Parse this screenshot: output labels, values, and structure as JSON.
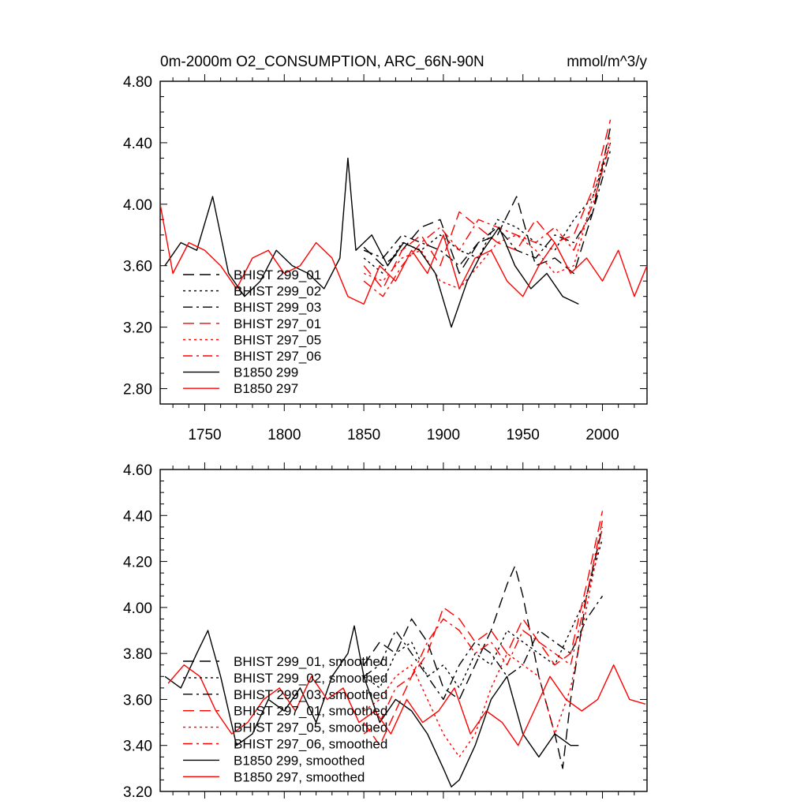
{
  "chart_data": [
    {
      "type": "line",
      "title": "0m-2000m O2_CONSUMPTION, ARC_66N-90N",
      "units": "mmol/m^3/y",
      "xlim": [
        1722,
        2028
      ],
      "ylim": [
        2.7,
        4.8
      ],
      "x_ticks": [
        1750,
        1800,
        1850,
        1900,
        1950,
        2000
      ],
      "y_ticks": [
        2.8,
        3.2,
        3.6,
        4.0,
        4.4,
        4.8
      ],
      "y_tick_labels": [
        "2.80",
        "3.20",
        "3.60",
        "4.00",
        "4.40",
        "4.80"
      ],
      "x_tick_labels_shown": true,
      "grid": false,
      "legend_position": "bottom-left",
      "series": [
        {
          "name": "BHIST 299_01",
          "color": "#000000",
          "dash": "dashed",
          "x": [
            1850,
            1862,
            1874,
            1886,
            1898,
            1910,
            1922,
            1934,
            1946,
            1958,
            1970,
            1982,
            1994,
            2005
          ],
          "y": [
            3.72,
            3.6,
            3.7,
            3.85,
            3.9,
            3.55,
            3.75,
            3.8,
            4.05,
            3.6,
            3.65,
            3.55,
            3.95,
            4.5
          ]
        },
        {
          "name": "BHIST 299_02",
          "color": "#000000",
          "dash": "dotted",
          "x": [
            1850,
            1862,
            1874,
            1886,
            1898,
            1910,
            1922,
            1934,
            1946,
            1958,
            1970,
            1982,
            1994,
            2005
          ],
          "y": [
            3.65,
            3.55,
            3.75,
            3.7,
            3.8,
            3.7,
            3.65,
            3.9,
            3.85,
            3.75,
            3.7,
            3.9,
            4.05,
            4.4
          ]
        },
        {
          "name": "BHIST 299_03",
          "color": "#000000",
          "dash": "dashdot",
          "x": [
            1850,
            1862,
            1874,
            1886,
            1898,
            1910,
            1922,
            1934,
            1946,
            1958,
            1970,
            1982,
            1994,
            2005
          ],
          "y": [
            3.7,
            3.65,
            3.8,
            3.75,
            3.7,
            3.6,
            3.75,
            3.85,
            3.7,
            3.65,
            3.8,
            3.75,
            3.95,
            4.35
          ]
        },
        {
          "name": "BHIST 297_01",
          "color": "#ff0000",
          "dash": "dashed",
          "x": [
            1850,
            1862,
            1874,
            1886,
            1898,
            1910,
            1922,
            1934,
            1946,
            1958,
            1970,
            1982,
            1994,
            2005
          ],
          "y": [
            3.6,
            3.45,
            3.7,
            3.8,
            3.6,
            3.95,
            3.85,
            3.75,
            3.7,
            3.9,
            3.75,
            3.8,
            4.1,
            4.55
          ]
        },
        {
          "name": "BHIST 297_05",
          "color": "#ff0000",
          "dash": "dotted",
          "x": [
            1850,
            1862,
            1874,
            1886,
            1898,
            1910,
            1922,
            1934,
            1946,
            1958,
            1970,
            1982,
            1994,
            2005
          ],
          "y": [
            3.55,
            3.5,
            3.65,
            3.7,
            3.5,
            3.45,
            3.6,
            3.75,
            3.8,
            3.7,
            3.55,
            3.6,
            4.05,
            4.45
          ]
        },
        {
          "name": "BHIST 297_06",
          "color": "#ff0000",
          "dash": "dashdot",
          "x": [
            1850,
            1862,
            1874,
            1886,
            1898,
            1910,
            1922,
            1934,
            1946,
            1958,
            1970,
            1982,
            1994,
            2005
          ],
          "y": [
            3.5,
            3.4,
            3.6,
            3.75,
            3.85,
            3.7,
            3.9,
            3.85,
            3.8,
            3.75,
            3.85,
            3.7,
            4.0,
            4.4
          ]
        },
        {
          "name": "B1850 299",
          "color": "#000000",
          "dash": "solid",
          "x": [
            1725,
            1735,
            1745,
            1755,
            1765,
            1775,
            1785,
            1795,
            1805,
            1815,
            1825,
            1835,
            1840,
            1845,
            1855,
            1865,
            1875,
            1885,
            1895,
            1905,
            1915,
            1925,
            1935,
            1945,
            1955,
            1965,
            1975,
            1985
          ],
          "y": [
            3.6,
            3.75,
            3.7,
            4.05,
            3.55,
            3.4,
            3.5,
            3.7,
            3.6,
            3.55,
            3.45,
            3.65,
            4.3,
            3.7,
            3.8,
            3.6,
            3.75,
            3.7,
            3.55,
            3.2,
            3.5,
            3.7,
            3.85,
            3.6,
            3.45,
            3.55,
            3.4,
            3.35
          ]
        },
        {
          "name": "B1850 297",
          "color": "#ff0000",
          "dash": "solid",
          "x": [
            1722,
            1730,
            1740,
            1750,
            1760,
            1770,
            1780,
            1790,
            1800,
            1810,
            1820,
            1830,
            1840,
            1850,
            1860,
            1870,
            1880,
            1890,
            1900,
            1910,
            1920,
            1930,
            1940,
            1950,
            1960,
            1970,
            1980,
            1990,
            2000,
            2010,
            2020,
            2028
          ],
          "y": [
            4.0,
            3.55,
            3.75,
            3.7,
            3.6,
            3.45,
            3.65,
            3.7,
            3.55,
            3.6,
            3.75,
            3.65,
            3.4,
            3.35,
            3.6,
            3.5,
            3.7,
            3.55,
            3.8,
            3.45,
            3.65,
            3.7,
            3.5,
            3.4,
            3.6,
            3.75,
            3.55,
            3.65,
            3.5,
            3.7,
            3.4,
            3.6
          ]
        }
      ]
    },
    {
      "type": "line",
      "title": "",
      "xlim": [
        1722,
        2028
      ],
      "ylim": [
        3.2,
        4.6
      ],
      "x_ticks": [
        1750,
        1800,
        1850,
        1900,
        1950,
        2000
      ],
      "y_ticks": [
        3.2,
        3.4,
        3.6,
        3.8,
        4.0,
        4.2,
        4.4,
        4.6
      ],
      "y_tick_labels": [
        "3.20",
        "3.40",
        "3.60",
        "3.80",
        "4.00",
        "4.20",
        "4.40",
        "4.60"
      ],
      "x_tick_labels_shown": false,
      "grid": false,
      "legend_position": "bottom-left",
      "series": [
        {
          "name": "BHIST 299_01, smoothed",
          "color": "#000000",
          "dash": "dashed",
          "x": [
            1850,
            1860,
            1870,
            1880,
            1890,
            1900,
            1910,
            1920,
            1930,
            1940,
            1945,
            1950,
            1960,
            1970,
            1975,
            1980,
            1990,
            2000
          ],
          "y": [
            3.75,
            3.85,
            3.8,
            3.95,
            3.85,
            3.65,
            3.6,
            3.75,
            3.9,
            4.1,
            4.18,
            4.05,
            3.7,
            3.45,
            3.3,
            3.6,
            4.05,
            4.35
          ]
        },
        {
          "name": "BHIST 299_02, smoothed",
          "color": "#000000",
          "dash": "dotted",
          "x": [
            1850,
            1860,
            1870,
            1880,
            1890,
            1900,
            1910,
            1920,
            1930,
            1940,
            1950,
            1960,
            1970,
            1980,
            1990,
            2000
          ],
          "y": [
            3.7,
            3.65,
            3.8,
            3.85,
            3.7,
            3.75,
            3.65,
            3.8,
            3.75,
            3.9,
            3.85,
            3.8,
            3.75,
            3.9,
            4.05,
            4.3
          ]
        },
        {
          "name": "BHIST 299_03, smoothed",
          "color": "#000000",
          "dash": "dashdot",
          "x": [
            1850,
            1860,
            1870,
            1880,
            1890,
            1900,
            1910,
            1920,
            1930,
            1940,
            1950,
            1960,
            1970,
            1980,
            1990,
            2000
          ],
          "y": [
            3.7,
            3.75,
            3.9,
            3.8,
            3.7,
            3.6,
            3.75,
            3.85,
            3.8,
            3.7,
            3.75,
            3.9,
            3.85,
            3.8,
            3.95,
            4.05
          ]
        },
        {
          "name": "BHIST 297_01, smoothed",
          "color": "#ff0000",
          "dash": "dashed",
          "x": [
            1850,
            1860,
            1870,
            1880,
            1890,
            1900,
            1910,
            1920,
            1930,
            1940,
            1950,
            1960,
            1970,
            1980,
            1990,
            2000
          ],
          "y": [
            3.5,
            3.4,
            3.55,
            3.7,
            3.8,
            4.0,
            3.95,
            3.85,
            3.9,
            3.8,
            3.95,
            3.85,
            3.75,
            3.8,
            4.1,
            4.42
          ]
        },
        {
          "name": "BHIST 297_05, smoothed",
          "color": "#ff0000",
          "dash": "dotted",
          "x": [
            1850,
            1860,
            1870,
            1880,
            1890,
            1900,
            1910,
            1920,
            1930,
            1940,
            1950,
            1960,
            1970,
            1980,
            1990,
            2000
          ],
          "y": [
            3.55,
            3.6,
            3.7,
            3.75,
            3.6,
            3.45,
            3.35,
            3.45,
            3.65,
            3.8,
            3.75,
            3.7,
            3.45,
            3.65,
            4.0,
            4.35
          ]
        },
        {
          "name": "BHIST 297_06, smoothed",
          "color": "#ff0000",
          "dash": "dashdot",
          "x": [
            1850,
            1860,
            1870,
            1880,
            1890,
            1900,
            1910,
            1920,
            1930,
            1940,
            1950,
            1960,
            1970,
            1980,
            1990,
            2000
          ],
          "y": [
            3.45,
            3.5,
            3.65,
            3.7,
            3.85,
            3.95,
            3.9,
            3.8,
            3.85,
            3.75,
            3.9,
            3.85,
            3.8,
            3.75,
            4.05,
            4.38
          ]
        },
        {
          "name": "B1850 299, smoothed",
          "color": "#000000",
          "dash": "solid",
          "x": [
            1725,
            1735,
            1745,
            1752,
            1760,
            1770,
            1780,
            1790,
            1800,
            1810,
            1820,
            1830,
            1840,
            1844,
            1850,
            1860,
            1870,
            1880,
            1890,
            1900,
            1905,
            1910,
            1920,
            1930,
            1940,
            1950,
            1960,
            1970,
            1980,
            1985
          ],
          "y": [
            3.7,
            3.65,
            3.8,
            3.9,
            3.7,
            3.4,
            3.45,
            3.6,
            3.55,
            3.65,
            3.5,
            3.7,
            3.8,
            3.92,
            3.7,
            3.5,
            3.6,
            3.55,
            3.45,
            3.3,
            3.22,
            3.25,
            3.4,
            3.6,
            3.7,
            3.45,
            3.35,
            3.45,
            3.4,
            3.4
          ]
        },
        {
          "name": "B1850 297, smoothed",
          "color": "#ff0000",
          "dash": "solid",
          "x": [
            1727,
            1737,
            1747,
            1757,
            1767,
            1777,
            1787,
            1797,
            1807,
            1817,
            1827,
            1837,
            1847,
            1857,
            1867,
            1877,
            1887,
            1897,
            1907,
            1917,
            1927,
            1937,
            1947,
            1957,
            1967,
            1977,
            1987,
            1997,
            2007,
            2017,
            2027
          ],
          "y": [
            3.67,
            3.75,
            3.7,
            3.55,
            3.45,
            3.5,
            3.6,
            3.65,
            3.55,
            3.7,
            3.6,
            3.65,
            3.5,
            3.55,
            3.45,
            3.6,
            3.5,
            3.55,
            3.65,
            3.45,
            3.55,
            3.5,
            3.4,
            3.55,
            3.7,
            3.6,
            3.55,
            3.6,
            3.75,
            3.6,
            3.58
          ]
        }
      ]
    }
  ]
}
